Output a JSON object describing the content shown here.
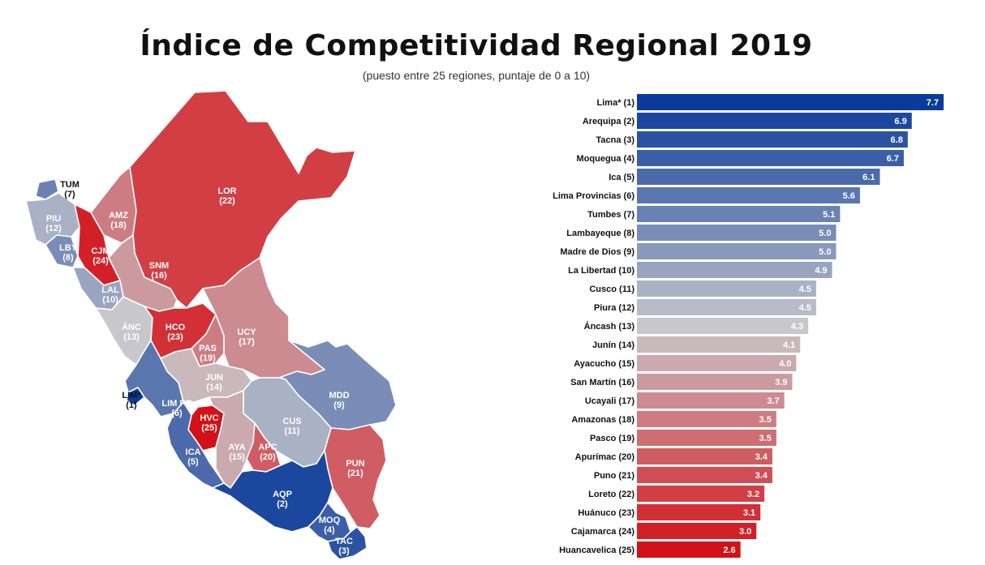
{
  "title": "Índice de Competitividad Regional 2019",
  "subtitle": "(puesto entre 25 regiones, puntaje de 0 a 10)",
  "colors": {
    "top": "#0b3b9a",
    "middle": "#c8c8cc",
    "bottom": "#d41118"
  },
  "map_regions": [
    {
      "code": "TUM",
      "rank": "(7)",
      "score": 5.1
    },
    {
      "code": "PIU",
      "rank": "(12)",
      "score": 4.5
    },
    {
      "code": "LBY",
      "rank": "(8)",
      "score": 5.0
    },
    {
      "code": "CJM",
      "rank": "(24)",
      "score": 3.0
    },
    {
      "code": "AMZ",
      "rank": "(18)",
      "score": 3.5
    },
    {
      "code": "LOR",
      "rank": "(22)",
      "score": 3.2
    },
    {
      "code": "LAL",
      "rank": "(10)",
      "score": 4.9
    },
    {
      "code": "SNM",
      "rank": "(16)",
      "score": 3.9
    },
    {
      "code": "ÁNC",
      "rank": "(13)",
      "score": 4.3
    },
    {
      "code": "HCO",
      "rank": "(23)",
      "score": 3.1
    },
    {
      "code": "PAS",
      "rank": "(19)",
      "score": 3.5
    },
    {
      "code": "UCY",
      "rank": "(17)",
      "score": 3.7
    },
    {
      "code": "LIM*",
      "rank": "(1)",
      "score": 7.7
    },
    {
      "code": "LIM PR",
      "rank": "(6)",
      "score": 5.6
    },
    {
      "code": "JUN",
      "rank": "(14)",
      "score": 4.1
    },
    {
      "code": "MDD",
      "rank": "(9)",
      "score": 5.0
    },
    {
      "code": "HVC",
      "rank": "(25)",
      "score": 2.6
    },
    {
      "code": "CUS",
      "rank": "(11)",
      "score": 4.5
    },
    {
      "code": "ICA",
      "rank": "(5)",
      "score": 6.1
    },
    {
      "code": "AYA",
      "rank": "(15)",
      "score": 4.0
    },
    {
      "code": "APC",
      "rank": "(20)",
      "score": 3.4
    },
    {
      "code": "PUN",
      "rank": "(21)",
      "score": 3.4
    },
    {
      "code": "AQP",
      "rank": "(2)",
      "score": 6.9
    },
    {
      "code": "MOQ",
      "rank": "(4)",
      "score": 6.7
    },
    {
      "code": "TAC",
      "rank": "(3)",
      "score": 6.8
    }
  ],
  "chart_data": {
    "type": "bar",
    "orientation": "horizontal",
    "categories": [
      "Lima* (1)",
      "Arequipa (2)",
      "Tacna (3)",
      "Moquegua (4)",
      "Ica (5)",
      "Lima Provincias (6)",
      "Tumbes (7)",
      "Lambayeque (8)",
      "Madre de Dios (9)",
      "La Libertad (10)",
      "Cusco (11)",
      "Piura (12)",
      "Áncash (13)",
      "Junín (14)",
      "Ayacucho (15)",
      "San Martín (16)",
      "Ucayali (17)",
      "Amazonas (18)",
      "Pasco (19)",
      "Apurímac (20)",
      "Puno (21)",
      "Loreto (22)",
      "Huánuco (23)",
      "Cajamarca (24)",
      "Huancavelica (25)"
    ],
    "values": [
      7.7,
      6.9,
      6.8,
      6.7,
      6.1,
      5.6,
      5.1,
      5.0,
      5.0,
      4.9,
      4.5,
      4.5,
      4.3,
      4.1,
      4.0,
      3.9,
      3.7,
      3.5,
      3.5,
      3.4,
      3.4,
      3.2,
      3.1,
      3.0,
      2.6
    ],
    "value_labels": [
      "7.7",
      "6.9",
      "6.8",
      "6.7",
      "6.1",
      "5.6",
      "5.1",
      "5.0",
      "5.0",
      "4.9",
      "4.5",
      "4.5",
      "4.3",
      "4.1",
      "4.0",
      "3.9",
      "3.7",
      "3.5",
      "3.5",
      "3.4",
      "3.4",
      "3.2",
      "3.1",
      "3.0",
      "2.6"
    ],
    "xlim": [
      0,
      7.7
    ],
    "grid": false,
    "legend": "none"
  }
}
